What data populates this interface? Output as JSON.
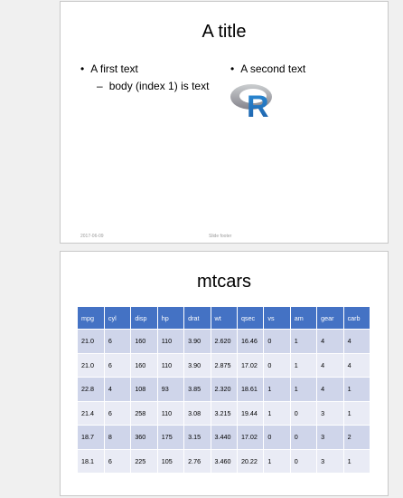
{
  "slide1": {
    "title": "A title",
    "left_bullet": "A first text",
    "left_sub_bullet": "body (index 1) is text",
    "right_bullet": "A second text",
    "logo_letter": "R",
    "footer_date": "2017-06-09",
    "footer_text": "Slide footer"
  },
  "slide2": {
    "title": "mtcars",
    "table": {
      "headers": [
        "mpg",
        "cyl",
        "disp",
        "hp",
        "drat",
        "wt",
        "qsec",
        "vs",
        "am",
        "gear",
        "carb"
      ],
      "rows": [
        [
          "21.0",
          "6",
          "160",
          "110",
          "3.90",
          "2.620",
          "16.46",
          "0",
          "1",
          "4",
          "4"
        ],
        [
          "21.0",
          "6",
          "160",
          "110",
          "3.90",
          "2.875",
          "17.02",
          "0",
          "1",
          "4",
          "4"
        ],
        [
          "22.8",
          "4",
          "108",
          "93",
          "3.85",
          "2.320",
          "18.61",
          "1",
          "1",
          "4",
          "1"
        ],
        [
          "21.4",
          "6",
          "258",
          "110",
          "3.08",
          "3.215",
          "19.44",
          "1",
          "0",
          "3",
          "1"
        ],
        [
          "18.7",
          "8",
          "360",
          "175",
          "3.15",
          "3.440",
          "17.02",
          "0",
          "0",
          "3",
          "2"
        ],
        [
          "18.1",
          "6",
          "225",
          "105",
          "2.76",
          "3.460",
          "20.22",
          "1",
          "0",
          "3",
          "1"
        ]
      ]
    }
  },
  "colors": {
    "header_bg": "#4472c4",
    "row_odd": "#cfd5ea",
    "row_even": "#e9ebf5",
    "r_blue": "#276dc3",
    "r_ring": "#a6a7aa"
  },
  "bullets": {
    "primary": "•",
    "secondary": "–"
  }
}
